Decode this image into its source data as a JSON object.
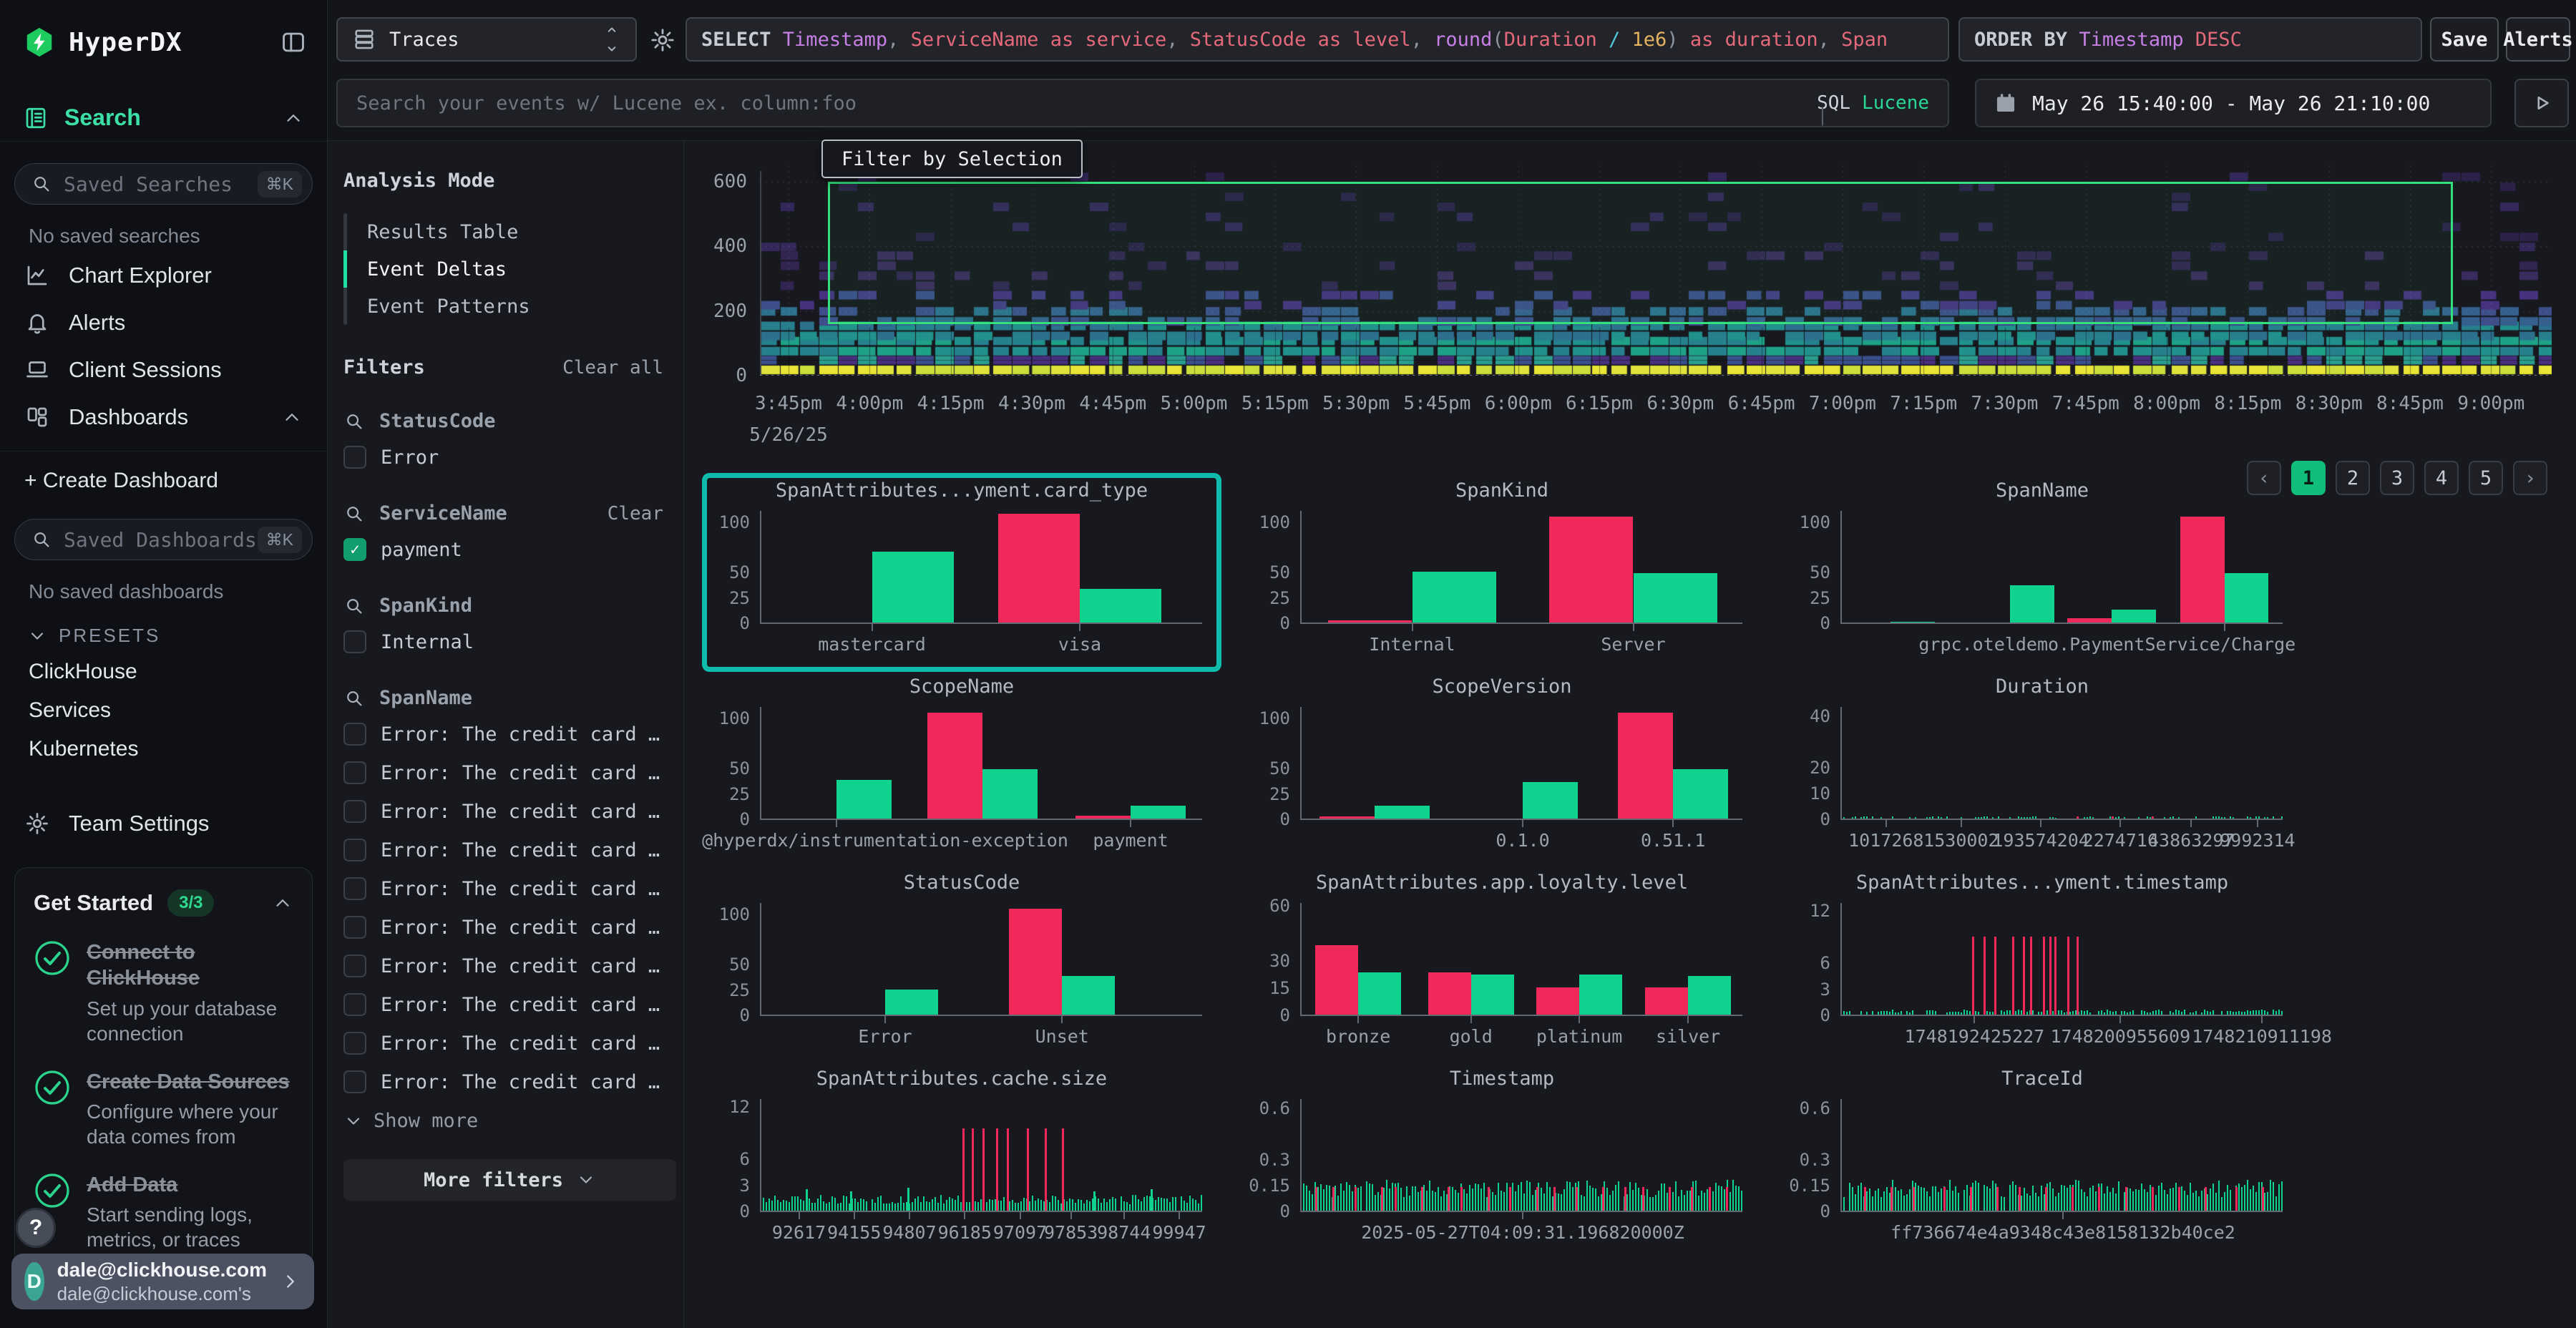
{
  "app": {
    "name": "HyperDX"
  },
  "theme": {
    "bar_green": "#0ed28e",
    "bar_red": "#f1295b",
    "selection_green": "#35e07c",
    "selected_border": "#0fbcab",
    "page_green": "#10bd7b",
    "check_green": "#119d6d",
    "logo_green": "#1ecb5f",
    "accent_green": "#3ce0a6"
  },
  "sidebar": {
    "search_label": "Search",
    "saved_searches": {
      "placeholder": "Saved Searches",
      "shortcut": "⌘K",
      "empty": "No saved searches"
    },
    "nav": [
      {
        "id": "chart-explorer",
        "label": "Chart Explorer"
      },
      {
        "id": "alerts",
        "label": "Alerts"
      },
      {
        "id": "client-sessions",
        "label": "Client Sessions"
      },
      {
        "id": "dashboards",
        "label": "Dashboards"
      }
    ],
    "create_dashboard": "+ Create Dashboard",
    "saved_dashboards": {
      "placeholder": "Saved Dashboards",
      "shortcut": "⌘K",
      "empty": "No saved dashboards"
    },
    "presets": {
      "label": "PRESETS",
      "items": [
        "ClickHouse",
        "Services",
        "Kubernetes"
      ]
    },
    "team_settings": "Team Settings",
    "get_started": {
      "title": "Get Started",
      "badge": "3/3",
      "items": [
        {
          "title": "Connect to ClickHouse",
          "desc": "Set up your database connection"
        },
        {
          "title": "Create Data Sources",
          "desc": "Configure where your data comes from"
        },
        {
          "title": "Add Data",
          "desc": "Start sending logs, metrics, or traces"
        }
      ]
    },
    "help": "?",
    "user": {
      "initial": "D",
      "email": "dale@clickhouse.com",
      "note": "dale@clickhouse.com's"
    }
  },
  "topbar": {
    "source": "Traces",
    "query_tokens": [
      {
        "t": "SELECT ",
        "c": "kw"
      },
      {
        "t": "Timestamp",
        "c": "type"
      },
      {
        "t": ", ",
        "c": "p"
      },
      {
        "t": "ServiceName as service",
        "c": "field"
      },
      {
        "t": ", ",
        "c": "p"
      },
      {
        "t": "StatusCode as level",
        "c": "field"
      },
      {
        "t": ", ",
        "c": "p"
      },
      {
        "t": "round",
        "c": "type"
      },
      {
        "t": "(",
        "c": "p"
      },
      {
        "t": "Duration",
        "c": "field"
      },
      {
        "t": " / ",
        "c": "op"
      },
      {
        "t": "1e6",
        "c": "num"
      },
      {
        "t": ")",
        "c": "p"
      },
      {
        "t": " as duration",
        "c": "field"
      },
      {
        "t": ", ",
        "c": "p"
      },
      {
        "t": "Span",
        "c": "field"
      }
    ],
    "order_by_tokens": [
      {
        "t": "ORDER BY ",
        "c": "kw"
      },
      {
        "t": "Timestamp ",
        "c": "type"
      },
      {
        "t": "DESC",
        "c": "field"
      }
    ],
    "save": "Save",
    "alerts": "Alerts",
    "search_placeholder": "Search your events w/ Lucene ex. column:foo",
    "lang": {
      "sql": "SQL",
      "divider": "|",
      "lucene": "Lucene"
    },
    "time_range": "May 26 15:40:00 - May 26 21:10:00"
  },
  "panel": {
    "analysis_mode": "Analysis Mode",
    "modes": [
      "Results Table",
      "Event Deltas",
      "Event Patterns"
    ],
    "active_mode": 1,
    "filters": "Filters",
    "clear_all": "Clear all",
    "more_filters": "More filters",
    "groups": [
      {
        "name": "StatusCode",
        "items": [
          {
            "label": "Error",
            "checked": false
          }
        ]
      },
      {
        "name": "ServiceName",
        "clear": "Clear",
        "items": [
          {
            "label": "payment",
            "checked": true
          }
        ]
      },
      {
        "name": "SpanKind",
        "items": [
          {
            "label": "Internal",
            "checked": false
          }
        ]
      },
      {
        "name": "SpanName",
        "show_more": "Show more",
        "items": [
          {
            "label": "Error: The credit card …",
            "checked": false
          },
          {
            "label": "Error: The credit card …",
            "checked": false
          },
          {
            "label": "Error: The credit card …",
            "checked": false
          },
          {
            "label": "Error: The credit card …",
            "checked": false
          },
          {
            "label": "Error: The credit card …",
            "checked": false
          },
          {
            "label": "Error: The credit card …",
            "checked": false
          },
          {
            "label": "Error: The credit card …",
            "checked": false
          },
          {
            "label": "Error: The credit card …",
            "checked": false
          },
          {
            "label": "Error: The credit card …",
            "checked": false
          },
          {
            "label": "Error: The credit card …",
            "checked": false
          }
        ]
      }
    ]
  },
  "filter_by_selection": "Filter by Selection",
  "pagination": {
    "prev": "‹",
    "pages": [
      "1",
      "2",
      "3",
      "4",
      "5"
    ],
    "active": 0,
    "next": "›"
  },
  "chart_data": [
    {
      "id": "events_over_time",
      "type": "heatmap",
      "yticks": [
        600,
        400,
        200,
        0
      ],
      "ymax": 650,
      "xlabels": [
        "3:45pm",
        "4:00pm",
        "4:15pm",
        "4:30pm",
        "4:45pm",
        "5:00pm",
        "5:15pm",
        "5:30pm",
        "5:45pm",
        "6:00pm",
        "6:15pm",
        "6:30pm",
        "6:45pm",
        "7:00pm",
        "7:15pm",
        "7:30pm",
        "7:45pm",
        "8:00pm",
        "8:15pm",
        "8:30pm",
        "8:45pm",
        "9:00pm"
      ],
      "date_label": "5/26/25",
      "selection": {
        "x0": 0.038,
        "x1": 0.945,
        "v_top": 600,
        "v_bottom": 160
      },
      "bands": [
        {
          "v": [
            0,
            30
          ],
          "colors": [
            "#e8e435",
            "#dfe23a",
            "#cadd3a"
          ],
          "density": 1.0
        },
        {
          "v": [
            30,
            58
          ],
          "colors": [
            "#2b9d8f",
            "#3a4f8c",
            "#472f7d"
          ],
          "density": 0.85
        },
        {
          "v": [
            58,
            105
          ],
          "colors": [
            "#1fa187",
            "#21918c",
            "#27808e"
          ],
          "density": 0.97
        },
        {
          "v": [
            105,
            150
          ],
          "colors": [
            "#277f8e",
            "#2d708e",
            "#21918c"
          ],
          "density": 0.9
        },
        {
          "v": [
            150,
            200
          ],
          "colors": [
            "#355f8d",
            "#3d4e8a",
            "#2d708e"
          ],
          "density": 0.6
        },
        {
          "v": [
            200,
            260
          ],
          "colors": [
            "#433d84",
            "#46327e",
            "#3d4e8a"
          ],
          "density": 0.35
        },
        {
          "v": [
            260,
            380
          ],
          "colors": [
            "#3a2c5e",
            "#322552"
          ],
          "density": 0.14
        },
        {
          "v": [
            380,
            620
          ],
          "colors": [
            "#34285a",
            "#2c2148"
          ],
          "density": 0.05
        }
      ],
      "seed": 7
    },
    {
      "id": "card_type",
      "type": "grouped_bars",
      "selected": true,
      "title": "SpanAttributes...yment.card_type",
      "yticks": [
        100,
        50,
        25,
        0
      ],
      "ymax": 112,
      "bw": 0.185,
      "groups": [
        {
          "x": 0.25,
          "g": 70,
          "label": "mastercard"
        },
        {
          "x": 0.72,
          "r": 108,
          "g": 33,
          "label": "visa"
        }
      ]
    },
    {
      "id": "span_kind",
      "type": "grouped_bars",
      "title": "SpanKind",
      "yticks": [
        100,
        50,
        25,
        0
      ],
      "ymax": 112,
      "bw": 0.19,
      "groups": [
        {
          "x": 0.25,
          "r": 2,
          "g": 50,
          "label": "Internal"
        },
        {
          "x": 0.75,
          "r": 105,
          "g": 49,
          "label": "Server"
        }
      ]
    },
    {
      "id": "span_name",
      "type": "grouped_bars",
      "title": "SpanName",
      "yticks": [
        100,
        50,
        25,
        0
      ],
      "ymax": 112,
      "bw": 0.1,
      "groups": [
        {
          "x": 0.11,
          "g": 1
        },
        {
          "x": 0.38,
          "g": 37
        },
        {
          "x": 0.61,
          "r": 4,
          "g": 13
        },
        {
          "x": 0.865,
          "r": 105,
          "g": 49,
          "label": "grpc.oteldemo.PaymentService/Charge",
          "label_x": 0.6
        }
      ]
    },
    {
      "id": "scope_name",
      "type": "grouped_bars",
      "title": "ScopeName",
      "yticks": [
        100,
        50,
        25,
        0
      ],
      "ymax": 112,
      "bw": 0.125,
      "groups": [
        {
          "x": 0.17,
          "g": 38,
          "label": "@hyperdx/instrumentation-exception",
          "label_x": 0.28
        },
        {
          "x": 0.5,
          "r": 105,
          "g": 49
        },
        {
          "x": 0.835,
          "r": 3,
          "g": 13,
          "label": "payment"
        }
      ]
    },
    {
      "id": "scope_version",
      "type": "grouped_bars",
      "title": "ScopeVersion",
      "yticks": [
        100,
        50,
        25,
        0
      ],
      "ymax": 112,
      "bw": 0.125,
      "groups": [
        {
          "x": 0.165,
          "r": 2,
          "g": 13
        },
        {
          "x": 0.5,
          "g": 36,
          "label": "0.1.0"
        },
        {
          "x": 0.84,
          "r": 105,
          "g": 49,
          "label": "0.51.1"
        }
      ]
    },
    {
      "id": "duration",
      "type": "spikes",
      "title": "Duration",
      "yticks": [
        40,
        20,
        10,
        0
      ],
      "ymax": 44,
      "seed": 3,
      "base": {
        "v": 0.7,
        "density": 0.45
      },
      "red_spikes": [
        {
          "x": 0.53,
          "v": 0.8
        },
        {
          "x": 0.61,
          "v": 0.8
        },
        {
          "x": 0.7,
          "v": 0.8
        }
      ],
      "xlabels": [
        {
          "x": 0.1,
          "t": "1017268"
        },
        {
          "x": 0.27,
          "t": "1530002"
        },
        {
          "x": 0.45,
          "t": "193574204"
        },
        {
          "x": 0.63,
          "t": "2274716"
        },
        {
          "x": 0.79,
          "t": "43863297"
        },
        {
          "x": 0.94,
          "t": "9992314"
        }
      ]
    },
    {
      "id": "status_code",
      "type": "grouped_bars",
      "title": "StatusCode",
      "yticks": [
        100,
        50,
        25,
        0
      ],
      "ymax": 112,
      "bw": 0.12,
      "groups": [
        {
          "x": 0.28,
          "g": 25,
          "label": "Error"
        },
        {
          "x": 0.68,
          "r": 105,
          "g": 38,
          "label": "Unset"
        }
      ]
    },
    {
      "id": "loyalty_level",
      "type": "grouped_bars",
      "title": "SpanAttributes.app.loyalty.level",
      "yticks": [
        60,
        30,
        15,
        0
      ],
      "ymax": 62,
      "bw": 0.097,
      "groups": [
        {
          "x": 0.128,
          "r": 38,
          "g": 23,
          "label": "bronze"
        },
        {
          "x": 0.383,
          "r": 23,
          "g": 22,
          "label": "gold"
        },
        {
          "x": 0.628,
          "r": 15,
          "g": 22,
          "label": "platinum"
        },
        {
          "x": 0.874,
          "r": 15,
          "g": 21,
          "label": "silver"
        }
      ]
    },
    {
      "id": "payment_timestamp",
      "type": "spikes",
      "title": "SpanAttributes...yment.timestamp",
      "yticks": [
        12,
        6,
        3,
        0
      ],
      "ymax": 13,
      "seed": 5,
      "base": {
        "v": 0.4,
        "density": 0.8
      },
      "red_spikes": [
        {
          "x": 0.295,
          "v": 9
        },
        {
          "x": 0.32,
          "v": 9
        },
        {
          "x": 0.345,
          "v": 9
        },
        {
          "x": 0.385,
          "v": 9
        },
        {
          "x": 0.41,
          "v": 9
        },
        {
          "x": 0.425,
          "v": 9
        },
        {
          "x": 0.455,
          "v": 9
        },
        {
          "x": 0.47,
          "v": 9
        },
        {
          "x": 0.48,
          "v": 9
        },
        {
          "x": 0.51,
          "v": 9
        },
        {
          "x": 0.53,
          "v": 9
        }
      ],
      "xlabels": [
        {
          "x": 0.3,
          "t": "1748192425227"
        },
        {
          "x": 0.63,
          "t": "1748200955609"
        },
        {
          "x": 0.95,
          "t": "1748210911198"
        }
      ]
    },
    {
      "id": "cache_size",
      "type": "spikes",
      "title": "SpanAttributes.cache.size",
      "yticks": [
        12,
        6,
        3,
        0
      ],
      "ymax": 13,
      "seed": 9,
      "base": {
        "v": 1.3,
        "density": 0.95
      },
      "green_spikes": [
        {
          "x": 0.1,
          "v": 2.5
        },
        {
          "x": 0.2,
          "v": 2.2
        },
        {
          "x": 0.33,
          "v": 2.6
        },
        {
          "x": 0.75,
          "v": 2.2
        },
        {
          "x": 0.88,
          "v": 2.5
        }
      ],
      "red_spikes": [
        {
          "x": 0.455,
          "v": 9.5
        },
        {
          "x": 0.475,
          "v": 9.5
        },
        {
          "x": 0.5,
          "v": 9.5
        },
        {
          "x": 0.53,
          "v": 9.5
        },
        {
          "x": 0.555,
          "v": 9.5
        },
        {
          "x": 0.6,
          "v": 9.5
        },
        {
          "x": 0.64,
          "v": 9.5
        },
        {
          "x": 0.68,
          "v": 9.5
        }
      ],
      "xlabels": [
        {
          "x": 0.085,
          "t": "92617"
        },
        {
          "x": 0.21,
          "t": "94155"
        },
        {
          "x": 0.335,
          "t": "94807"
        },
        {
          "x": 0.46,
          "t": "96185"
        },
        {
          "x": 0.585,
          "t": "97097"
        },
        {
          "x": 0.7,
          "t": "97853"
        },
        {
          "x": 0.82,
          "t": "98744"
        },
        {
          "x": 0.945,
          "t": "99947"
        }
      ]
    },
    {
      "id": "timestamp",
      "type": "spikes",
      "title": "Timestamp",
      "yticks": [
        0.6,
        0.3,
        0.15,
        0
      ],
      "ymax": 0.66,
      "seed": 11,
      "base": {
        "v": 0.13,
        "density": 0.97
      },
      "red_spikes": [
        {
          "x": 0.03,
          "v": 0.14
        },
        {
          "x": 0.07,
          "v": 0.14
        },
        {
          "x": 0.12,
          "v": 0.14
        },
        {
          "x": 0.18,
          "v": 0.14
        },
        {
          "x": 0.21,
          "v": 0.14
        },
        {
          "x": 0.27,
          "v": 0.14
        },
        {
          "x": 0.33,
          "v": 0.14
        },
        {
          "x": 0.36,
          "v": 0.14
        },
        {
          "x": 0.42,
          "v": 0.14
        },
        {
          "x": 0.47,
          "v": 0.14
        },
        {
          "x": 0.53,
          "v": 0.14
        },
        {
          "x": 0.57,
          "v": 0.14
        },
        {
          "x": 0.62,
          "v": 0.14
        },
        {
          "x": 0.68,
          "v": 0.14
        },
        {
          "x": 0.73,
          "v": 0.14
        },
        {
          "x": 0.77,
          "v": 0.14
        },
        {
          "x": 0.83,
          "v": 0.14
        },
        {
          "x": 0.88,
          "v": 0.14
        },
        {
          "x": 0.92,
          "v": 0.14
        },
        {
          "x": 0.96,
          "v": 0.14
        }
      ],
      "xlabels": [
        {
          "x": 0.5,
          "t": "2025-05-27T04:09:31.196820000Z"
        }
      ]
    },
    {
      "id": "trace_id",
      "type": "spikes",
      "title": "TraceId",
      "yticks": [
        0.6,
        0.3,
        0.15,
        0
      ],
      "ymax": 0.66,
      "seed": 17,
      "base": {
        "v": 0.13,
        "density": 0.97
      },
      "red_spikes": [
        {
          "x": 0.05,
          "v": 0.14
        },
        {
          "x": 0.11,
          "v": 0.14
        },
        {
          "x": 0.16,
          "v": 0.14
        },
        {
          "x": 0.23,
          "v": 0.14
        },
        {
          "x": 0.29,
          "v": 0.14
        },
        {
          "x": 0.35,
          "v": 0.14
        },
        {
          "x": 0.4,
          "v": 0.14
        },
        {
          "x": 0.46,
          "v": 0.14
        },
        {
          "x": 0.52,
          "v": 0.14
        },
        {
          "x": 0.58,
          "v": 0.14
        },
        {
          "x": 0.64,
          "v": 0.14
        },
        {
          "x": 0.7,
          "v": 0.14
        },
        {
          "x": 0.76,
          "v": 0.14
        },
        {
          "x": 0.82,
          "v": 0.14
        },
        {
          "x": 0.89,
          "v": 0.14
        },
        {
          "x": 0.95,
          "v": 0.14
        }
      ],
      "xlabels": [
        {
          "x": 0.5,
          "t": "ff736674e4a9348c43e8158132b40ce2"
        }
      ]
    }
  ]
}
